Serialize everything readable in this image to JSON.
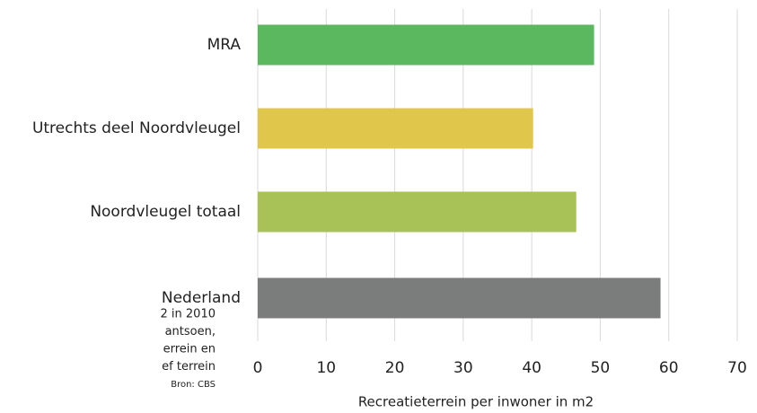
{
  "chart_data": {
    "type": "bar",
    "orientation": "horizontal",
    "categories": [
      "MRA",
      "Utrechts deel Noordvleugel",
      "Noordvleugel totaal",
      "Nederland"
    ],
    "values": [
      49.1,
      40.2,
      46.5,
      58.8
    ],
    "colors": [
      "#5cb85f",
      "#e0c74b",
      "#a8c257",
      "#7b7d7d"
    ],
    "xlabel": "Recreatieterrein per inwoner in m2",
    "xlim": [
      0,
      70
    ],
    "xticks": [
      0,
      10,
      20,
      30,
      40,
      50,
      60,
      70
    ],
    "grid": true,
    "annotations": [
      "2 in 2010",
      "antsoen,",
      "errein en",
      "ef terrein"
    ],
    "source": "Bron: CBS"
  }
}
